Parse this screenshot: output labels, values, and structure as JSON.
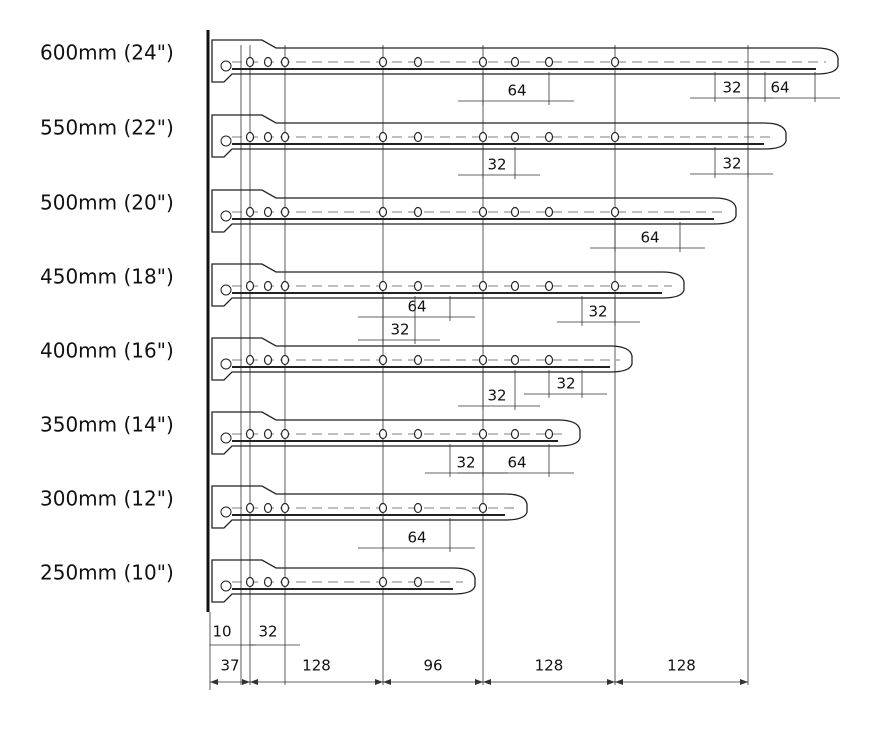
{
  "rails": [
    {
      "label": "600mm (24\")",
      "dims": [
        64,
        32,
        64
      ]
    },
    {
      "label": "550mm (22\")",
      "dims": [
        32,
        32
      ]
    },
    {
      "label": "500mm (20\")",
      "dims": [
        64
      ]
    },
    {
      "label": "450mm (18\")",
      "dims": [
        64,
        32,
        32
      ]
    },
    {
      "label": "400mm (16\")",
      "dims": [
        32,
        32
      ]
    },
    {
      "label": "350mm (14\")",
      "dims": [
        32,
        64
      ]
    },
    {
      "label": "300mm (12\")",
      "dims": [
        64
      ]
    },
    {
      "label": "250mm (10\")",
      "dims": []
    }
  ],
  "bottom": {
    "row1": [
      10,
      32
    ],
    "row2": [
      37,
      128,
      96,
      128,
      128
    ]
  }
}
